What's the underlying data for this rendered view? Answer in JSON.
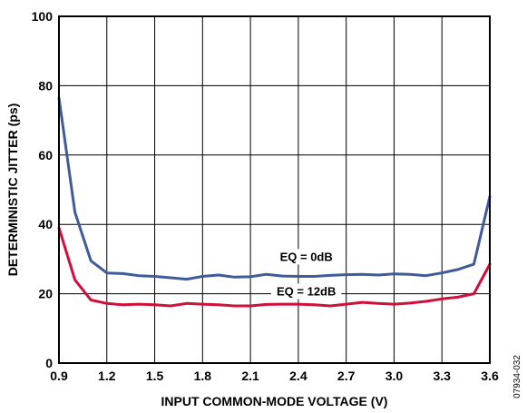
{
  "chart_data": {
    "type": "line",
    "title": "",
    "xlabel": "INPUT COMMON-MODE VOLTAGE (V)",
    "ylabel": "DETERMINISTIC JITTER (ps)",
    "xlim": [
      0.9,
      3.6
    ],
    "ylim": [
      0,
      100
    ],
    "x_ticks": [
      "0.9",
      "1.2",
      "1.5",
      "1.8",
      "2.1",
      "2.4",
      "2.7",
      "3.0",
      "3.3",
      "3.6"
    ],
    "y_ticks": [
      "0",
      "20",
      "40",
      "60",
      "80",
      "100"
    ],
    "grid": true,
    "x": [
      0.9,
      1.0,
      1.1,
      1.2,
      1.3,
      1.4,
      1.5,
      1.6,
      1.7,
      1.8,
      1.9,
      2.0,
      2.1,
      2.2,
      2.3,
      2.4,
      2.5,
      2.6,
      2.7,
      2.8,
      2.9,
      3.0,
      3.1,
      3.2,
      3.3,
      3.4,
      3.5,
      3.6
    ],
    "series": [
      {
        "name": "EQ = 0dB",
        "color": "#3f5c9a",
        "values": [
          76.5,
          43.5,
          29.5,
          26.0,
          25.8,
          25.2,
          25.0,
          24.6,
          24.2,
          25.0,
          25.4,
          24.8,
          24.9,
          25.6,
          25.1,
          25.0,
          25.0,
          25.3,
          25.5,
          25.6,
          25.4,
          25.7,
          25.6,
          25.2,
          26.0,
          27.0,
          28.5,
          48.0
        ]
      },
      {
        "name": "EQ = 12dB",
        "color": "#d0103a",
        "values": [
          39.0,
          24.0,
          18.2,
          17.2,
          16.8,
          17.0,
          16.8,
          16.5,
          17.2,
          17.0,
          16.8,
          16.5,
          16.5,
          16.9,
          17.0,
          17.0,
          16.8,
          16.5,
          17.0,
          17.5,
          17.2,
          17.0,
          17.3,
          17.8,
          18.5,
          19.0,
          20.0,
          28.5
        ]
      }
    ],
    "annotations": [
      "EQ = 0dB",
      "EQ = 12dB"
    ],
    "figure_code": "07934-032"
  }
}
